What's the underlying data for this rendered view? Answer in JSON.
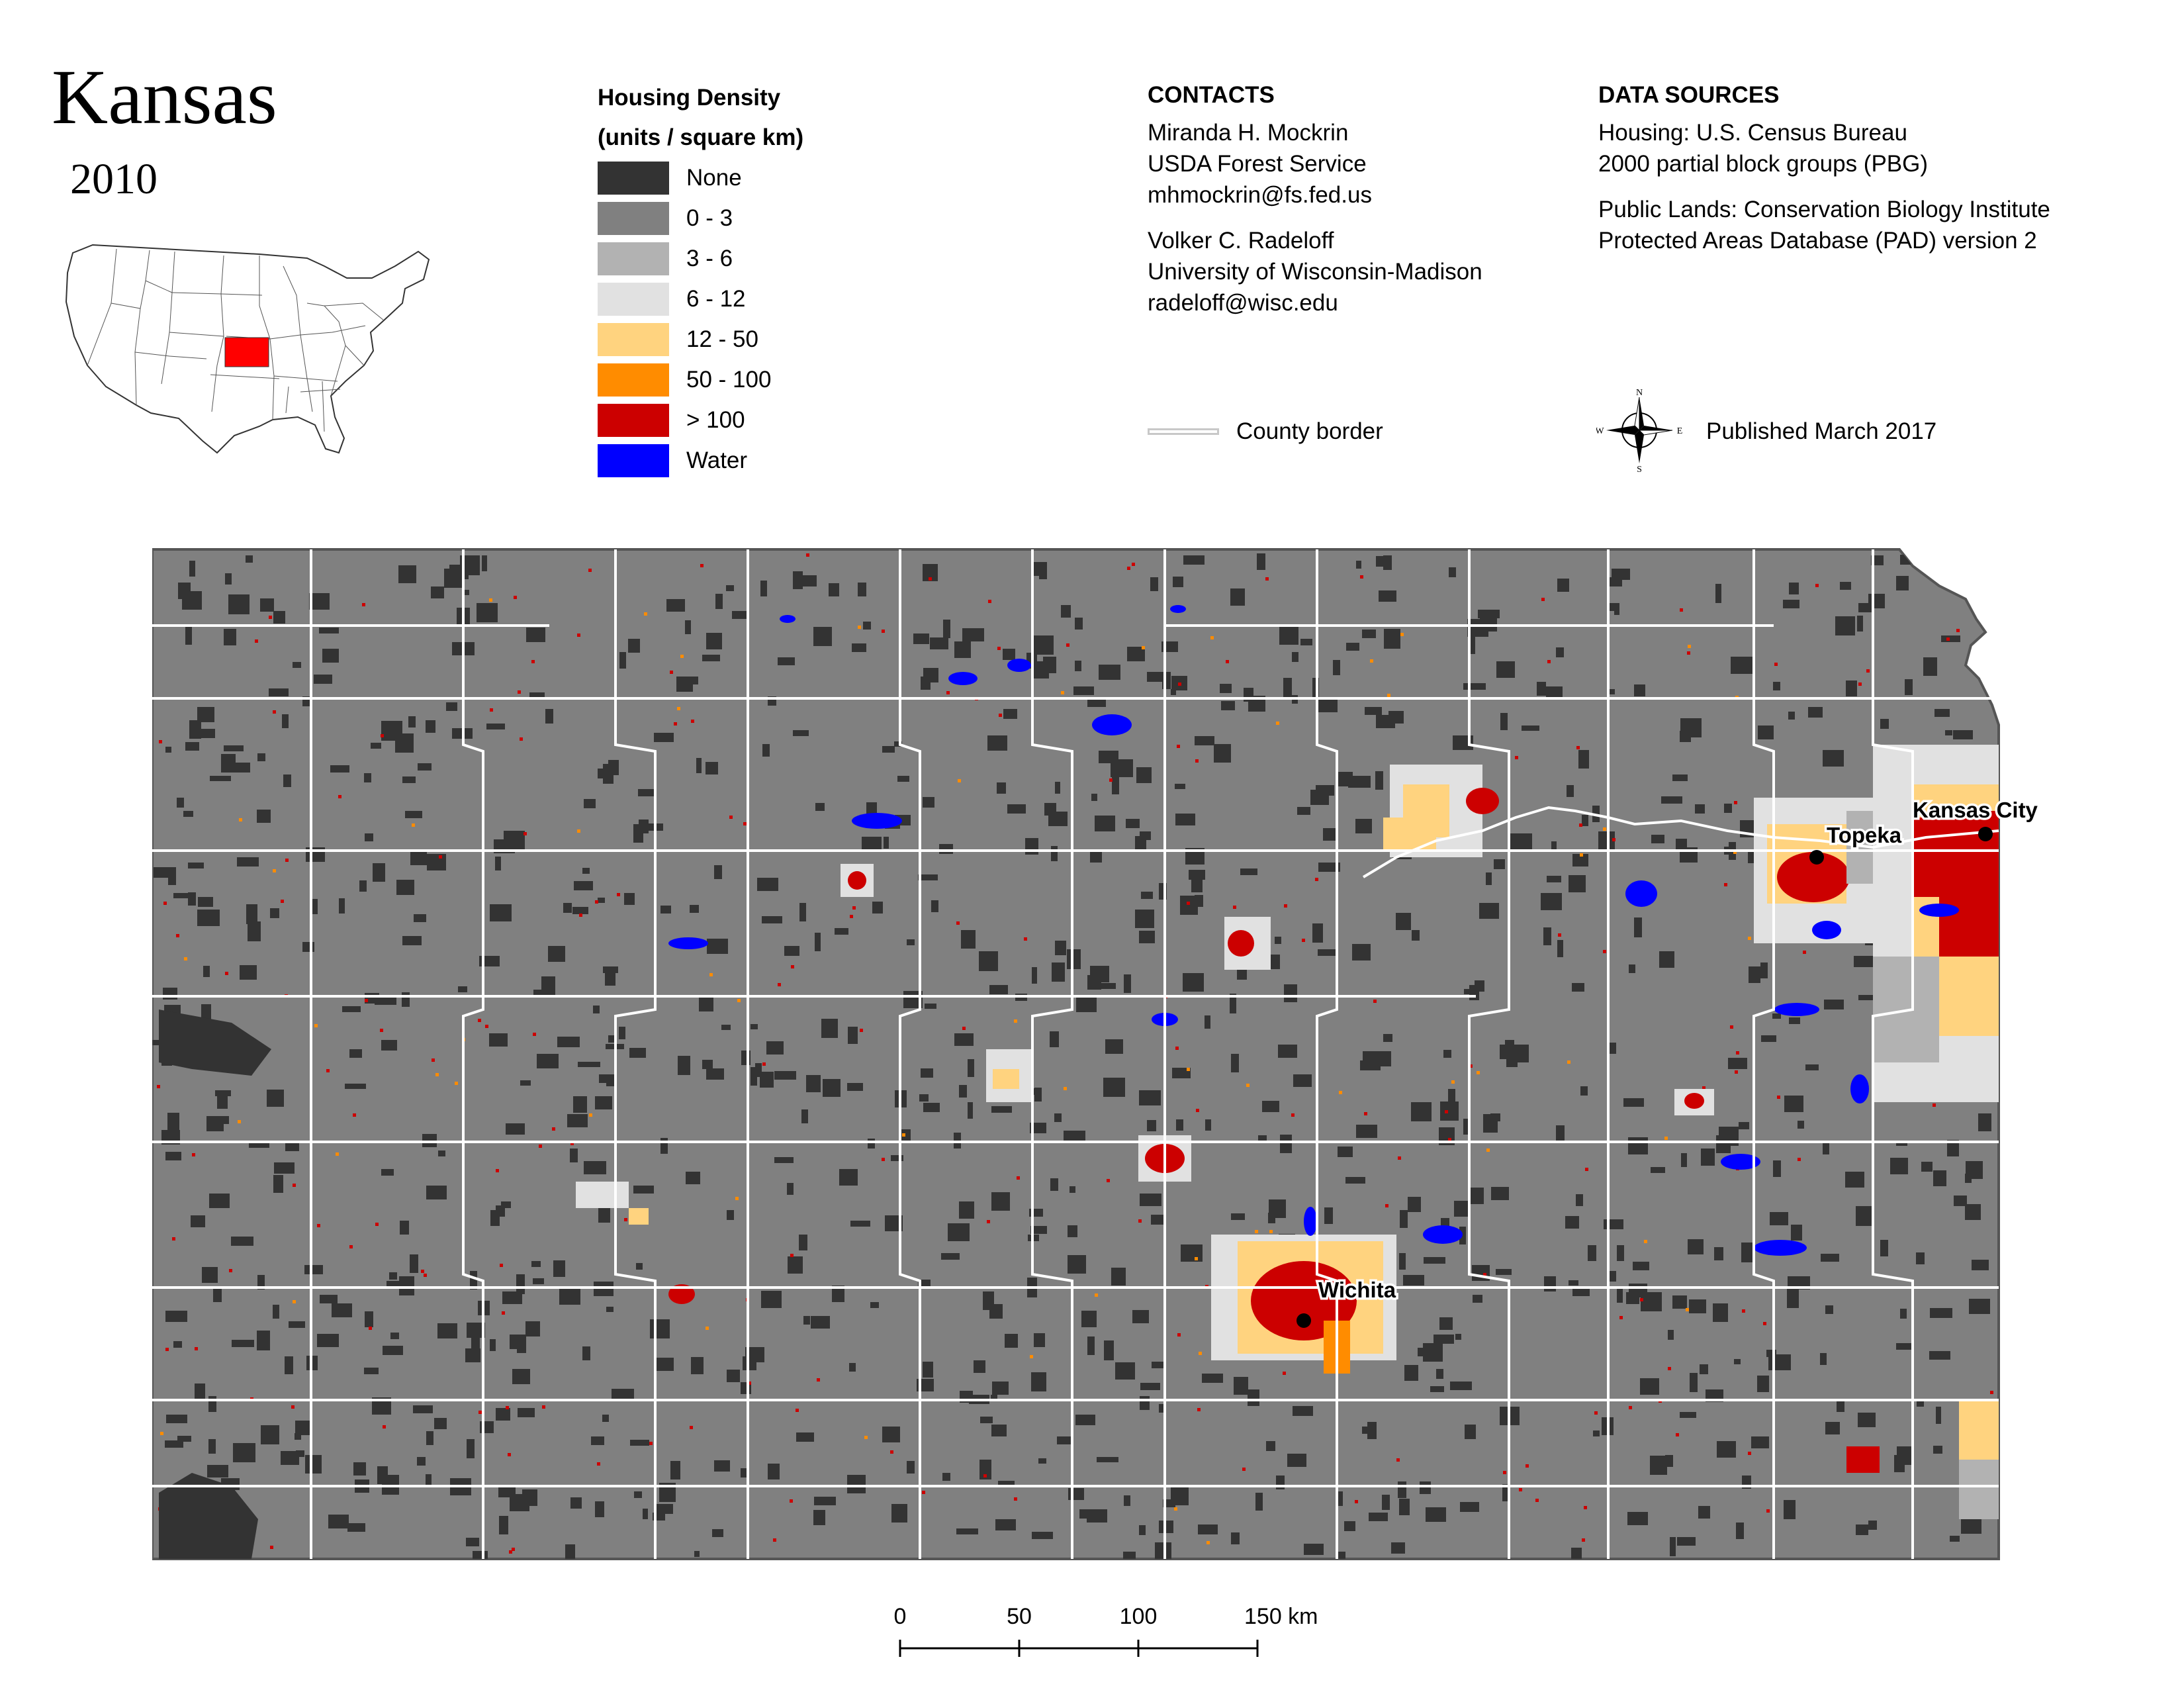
{
  "title": "Kansas",
  "year": "2010",
  "legend": {
    "title_line1": "Housing Density",
    "title_line2": "(units / square km)",
    "items": [
      {
        "label": "None",
        "color": "#333333"
      },
      {
        "label": "0 - 3",
        "color": "#808080"
      },
      {
        "label": "3 - 6",
        "color": "#b2b2b2"
      },
      {
        "label": "6 - 12",
        "color": "#e1e1e1"
      },
      {
        "label": "12 - 50",
        "color": "#ffd37f"
      },
      {
        "label": "50 - 100",
        "color": "#ff8c00"
      },
      {
        "label": "> 100",
        "color": "#cc0000"
      },
      {
        "label": "Water",
        "color": "#0000ff"
      }
    ]
  },
  "contacts": {
    "heading": "CONTACTS",
    "person1": {
      "name": "Miranda H. Mockrin",
      "org": "USDA Forest Service",
      "email": "mhmockrin@fs.fed.us"
    },
    "person2": {
      "name": "Volker C. Radeloff",
      "org": "University of Wisconsin-Madison",
      "email": "radeloff@wisc.edu"
    }
  },
  "sources": {
    "heading": "DATA SOURCES",
    "housing_line1": "Housing: U.S. Census Bureau",
    "housing_line2": "2000 partial block groups (PBG)",
    "lands_line1": "Public Lands: Conservation Biology Institute",
    "lands_line2": "Protected Areas Database (PAD) version 2"
  },
  "county_border_label": "County border",
  "published": "Published March 2017",
  "compass": {
    "n": "N",
    "s": "S",
    "e": "E",
    "w": "W"
  },
  "cities": {
    "kansas_city": "Kansas City",
    "topeka": "Topeka",
    "wichita": "Wichita"
  },
  "scale": {
    "t0": "0",
    "t1": "50",
    "t2": "100",
    "t3": "150 km"
  },
  "colors": {
    "state_fill": "#808080",
    "highlight_state": "#ff0000",
    "county_border": "#ffffff",
    "water": "#0000ff",
    "dense": "#cc0000"
  }
}
